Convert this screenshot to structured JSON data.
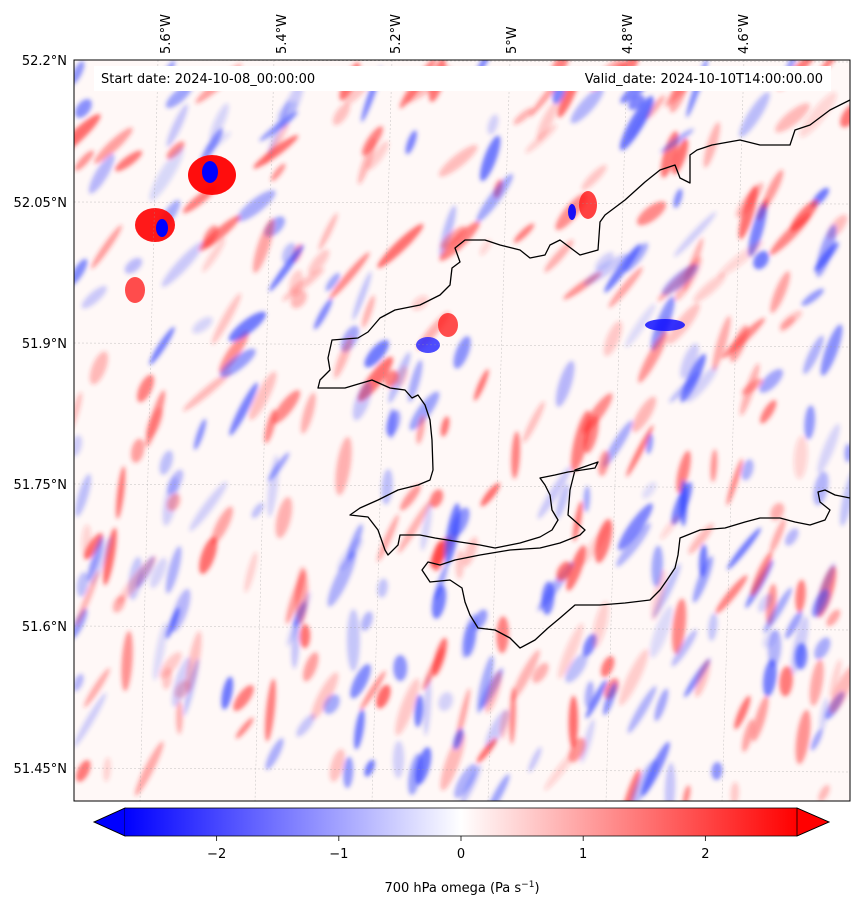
{
  "header": {
    "start_date": "Start date: 2024-10-08_00:00:00",
    "valid_date": "Valid_date: 2024-10-10T14:00:00.00"
  },
  "axes": {
    "lon_labels": [
      "5.6°W",
      "5.4°W",
      "5.2°W",
      "5°W",
      "4.8°W",
      "4.6°W"
    ],
    "lat_labels": [
      "52.2°N",
      "52.05°N",
      "51.9°N",
      "51.75°N",
      "51.6°N",
      "51.45°N"
    ]
  },
  "colorbar": {
    "label": "700 hPa omega (Pa s",
    "label_sup": "−1",
    "label_close": ")",
    "ticks": [
      "−2",
      "−1",
      "0",
      "1",
      "2"
    ],
    "tick_values": [
      -2,
      -1,
      0,
      1,
      2
    ],
    "range": [
      -2.75,
      2.75
    ],
    "cmap": "bwr",
    "colors": {
      "negative": "#0000ff",
      "zero": "#ffffff",
      "positive": "#ff0000"
    }
  },
  "chart_data": {
    "type": "heatmap",
    "variable": "700 hPa omega",
    "units": "Pa s−1",
    "lon_ticks": [
      -5.6,
      -5.4,
      -5.2,
      -5.0,
      -4.8,
      -4.6
    ],
    "lat_ticks": [
      52.2,
      52.05,
      51.9,
      51.75,
      51.6,
      51.45
    ],
    "value_range": [
      -2.75,
      2.75
    ],
    "grid": true,
    "coastline": true
  }
}
